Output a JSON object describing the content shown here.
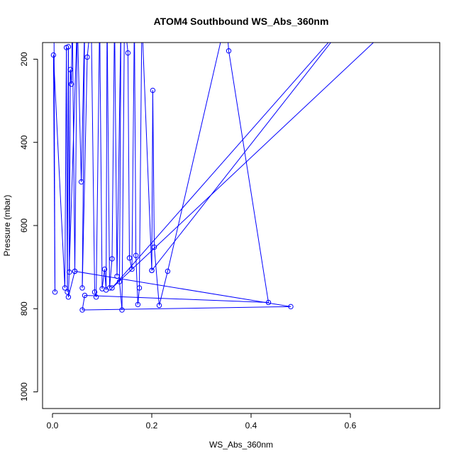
{
  "chart_data": {
    "type": "line",
    "title": "ATOM4 Southbound WS_Abs_360nm",
    "xlabel": "WS_Abs_360nm",
    "ylabel": "Pressure (mbar)",
    "xlim": [
      -0.02,
      0.78
    ],
    "ylim": [
      1040,
      160
    ],
    "y_reversed": true,
    "xticks": [
      0.0,
      0.2,
      0.4,
      0.6
    ],
    "xtick_labels": [
      "0.0",
      "0.2",
      "0.4",
      "0.6"
    ],
    "yticks": [
      200,
      400,
      600,
      800,
      1000
    ],
    "ytick_labels": [
      "200",
      "400",
      "600",
      "800",
      "1000"
    ],
    "grid": false,
    "legend": "none",
    "series_color": "#0000ff",
    "series": [
      {
        "points": [
          [
            0.003,
            100
          ],
          [
            0.005,
            760
          ],
          [
            0.002,
            190
          ],
          [
            0.025,
            750
          ],
          [
            0.028,
            172
          ],
          [
            0.03,
            760
          ],
          [
            0.032,
            170
          ],
          [
            0.034,
            712
          ],
          [
            0.036,
            225
          ],
          [
            0.038,
            260
          ],
          [
            0.04,
            100
          ],
          [
            0.045,
            710
          ],
          [
            0.032,
            772
          ],
          [
            0.05,
            100
          ],
          [
            0.058,
            495
          ],
          [
            0.065,
            100
          ],
          [
            0.06,
            750
          ],
          [
            0.07,
            195
          ],
          [
            0.078,
            100
          ],
          [
            0.085,
            760
          ],
          [
            0.088,
            772
          ],
          [
            0.095,
            100
          ],
          [
            0.1,
            752
          ],
          [
            0.105,
            705
          ],
          [
            0.108,
            755
          ],
          [
            0.11,
            100
          ],
          [
            0.115,
            750
          ],
          [
            0.12,
            680
          ],
          [
            0.125,
            100
          ],
          [
            0.13,
            722
          ],
          [
            0.138,
            100
          ],
          [
            0.135,
            735
          ],
          [
            0.14,
            803
          ],
          [
            0.145,
            100
          ],
          [
            0.152,
            185
          ],
          [
            0.155,
            678
          ],
          [
            0.16,
            705
          ],
          [
            0.165,
            100
          ],
          [
            0.168,
            672
          ],
          [
            0.172,
            790
          ],
          [
            0.175,
            750
          ],
          [
            0.18,
            100
          ],
          [
            0.2,
            708
          ],
          [
            0.202,
            275
          ],
          [
            0.205,
            652
          ],
          [
            0.215,
            792
          ],
          [
            0.232,
            710
          ],
          [
            0.35,
            100
          ],
          [
            0.355,
            180
          ],
          [
            0.435,
            785
          ],
          [
            0.065,
            768
          ],
          [
            0.06,
            803
          ],
          [
            0.48,
            795
          ],
          [
            0.045,
            710
          ],
          [
            0.05,
            100
          ],
          [
            0.7,
            100
          ],
          [
            0.12,
            750
          ],
          [
            0.6,
            100
          ],
          [
            0.2,
            708
          ]
        ]
      }
    ]
  }
}
